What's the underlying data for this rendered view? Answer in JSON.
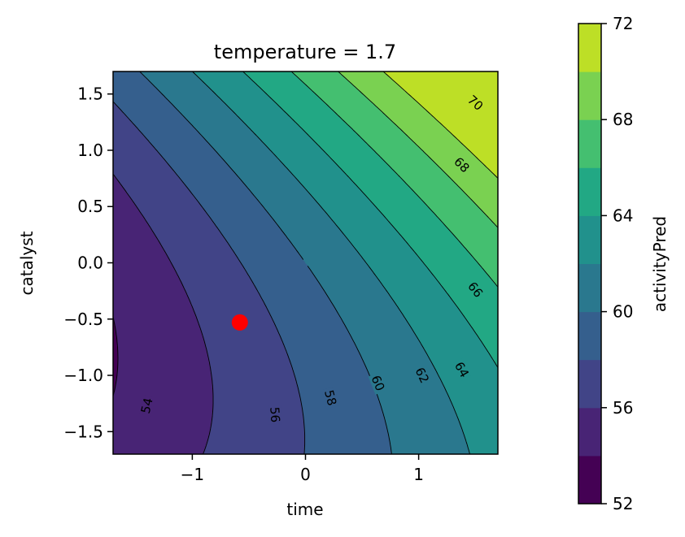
{
  "chart_data": {
    "type": "contour",
    "title": "temperature = 1.7",
    "xlabel": "time",
    "ylabel": "catalyst",
    "xlim": [
      -1.7,
      1.7
    ],
    "ylim": [
      -1.7,
      1.7
    ],
    "x_ticks": [
      -1,
      0,
      1
    ],
    "x_tick_labels": [
      "−1",
      "0",
      "1"
    ],
    "y_ticks": [
      -1.5,
      -1.0,
      -0.5,
      0.0,
      0.5,
      1.0,
      1.5
    ],
    "y_tick_labels": [
      "−1.5",
      "−1.0",
      "−0.5",
      "0.0",
      "0.5",
      "1.0",
      "1.5"
    ],
    "grid": false,
    "colorbar": {
      "label": "activityPred",
      "min": 52,
      "max": 72,
      "levels": [
        52,
        54,
        56,
        58,
        60,
        62,
        64,
        66,
        68,
        70,
        72
      ],
      "tick_values": [
        52,
        56,
        60,
        64,
        68,
        72
      ],
      "tick_labels": [
        "52",
        "56",
        "60",
        "64",
        "68",
        "72"
      ],
      "colormap": "viridis",
      "band_colors": [
        "#440154",
        "#482475",
        "#414487",
        "#355f8d",
        "#2a788e",
        "#21918c",
        "#22a884",
        "#44bf70",
        "#7ad151",
        "#bddf26"
      ]
    },
    "contour_labels": [
      {
        "text": "54",
        "x": -1.4,
        "y": -1.27
      },
      {
        "text": "56",
        "x": -0.27,
        "y": -1.35
      },
      {
        "text": "58",
        "x": 0.22,
        "y": -1.2
      },
      {
        "text": "60",
        "x": 0.64,
        "y": -1.07
      },
      {
        "text": "62",
        "x": 1.03,
        "y": -1.0
      },
      {
        "text": "64",
        "x": 1.38,
        "y": -0.95
      },
      {
        "text": "66",
        "x": 1.5,
        "y": -0.24
      },
      {
        "text": "68",
        "x": 1.38,
        "y": 0.87
      },
      {
        "text": "70",
        "x": 1.5,
        "y": 1.42
      }
    ],
    "marker": {
      "x": -0.58,
      "y": -0.53,
      "color": "#ff0000"
    }
  }
}
